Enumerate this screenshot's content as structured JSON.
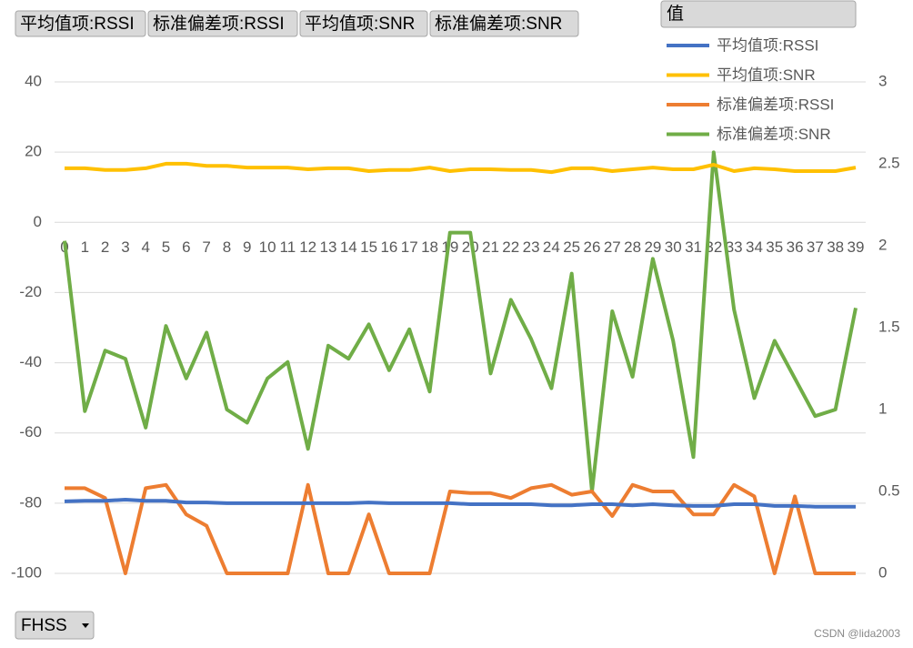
{
  "chart_data": {
    "type": "line",
    "categories": [
      0,
      1,
      2,
      3,
      4,
      5,
      6,
      7,
      8,
      9,
      10,
      11,
      12,
      13,
      14,
      15,
      16,
      17,
      18,
      19,
      20,
      21,
      22,
      23,
      24,
      25,
      26,
      27,
      28,
      29,
      30,
      31,
      32,
      33,
      34,
      35,
      36,
      37,
      38,
      39
    ],
    "series": [
      {
        "name": "平均值项:RSSI",
        "color": "#4472c4",
        "values": [
          -79.5,
          -79.3,
          -79.3,
          -79.0,
          -79.3,
          -79.3,
          -79.8,
          -79.8,
          -80.0,
          -80.0,
          -80.0,
          -80.0,
          -80.0,
          -80.0,
          -80.0,
          -79.8,
          -80.0,
          -80.0,
          -80.0,
          -80.0,
          -80.3,
          -80.3,
          -80.3,
          -80.3,
          -80.6,
          -80.6,
          -80.3,
          -80.3,
          -80.6,
          -80.3,
          -80.6,
          -80.8,
          -80.8,
          -80.3,
          -80.3,
          -80.8,
          -80.8,
          -81.0,
          -81.0,
          -81.0
        ]
      },
      {
        "name": "平均值项:SNR",
        "color": "#ffc000",
        "values": [
          15.4,
          15.4,
          14.9,
          14.9,
          15.4,
          16.7,
          16.7,
          16.1,
          16.1,
          15.6,
          15.6,
          15.6,
          15.1,
          15.4,
          15.4,
          14.6,
          14.9,
          14.9,
          15.6,
          14.6,
          15.1,
          15.1,
          14.9,
          14.9,
          14.3,
          15.4,
          15.4,
          14.6,
          15.1,
          15.6,
          15.1,
          15.1,
          16.4,
          14.6,
          15.4,
          15.1,
          14.6,
          14.6,
          14.6,
          15.6
        ]
      },
      {
        "name": "标准偏差项:RSSI",
        "color": "#ed7d31",
        "axis": "y2",
        "values": [
          0.52,
          0.52,
          0.46,
          0,
          0.52,
          0.54,
          0.36,
          0.29,
          0,
          0,
          0,
          0,
          0.54,
          0,
          0,
          0.36,
          0,
          0,
          0,
          0.5,
          0.49,
          0.49,
          0.46,
          0.52,
          0.54,
          0.48,
          0.5,
          0.35,
          0.54,
          0.5,
          0.5,
          0.36,
          0.36,
          0.54,
          0.47,
          0,
          0.47,
          0,
          0,
          0
        ]
      },
      {
        "name": "标准偏差项:SNR",
        "color": "#70ad47",
        "axis": "y2",
        "values": [
          2.03,
          0.99,
          1.36,
          1.31,
          0.89,
          1.51,
          1.19,
          1.47,
          1.0,
          0.92,
          1.19,
          1.29,
          0.76,
          1.39,
          1.31,
          1.52,
          1.24,
          1.49,
          1.11,
          2.08,
          2.08,
          1.22,
          1.67,
          1.43,
          1.13,
          1.83,
          0.5,
          1.6,
          1.2,
          1.92,
          1.42,
          0.71,
          2.57,
          1.61,
          1.07,
          1.42,
          1.19,
          0.96,
          1.0,
          1.62
        ]
      }
    ],
    "ylim": [
      -100,
      40
    ],
    "yticks": [
      -100,
      -80,
      -60,
      -40,
      -20,
      0,
      20,
      40
    ],
    "y2lim": [
      0,
      3
    ],
    "y2ticks": [
      0,
      0.5,
      1,
      1.5,
      2,
      2.5,
      3
    ],
    "grid": true,
    "legend": "top-right",
    "legend_title": "值"
  },
  "ui": {
    "field_buttons": [
      "平均值项:RSSI",
      "标准偏差项:RSSI",
      "平均值项:SNR",
      "标准偏差项:SNR"
    ],
    "filter": "FHSS",
    "watermark": "CSDN @lida2003"
  }
}
